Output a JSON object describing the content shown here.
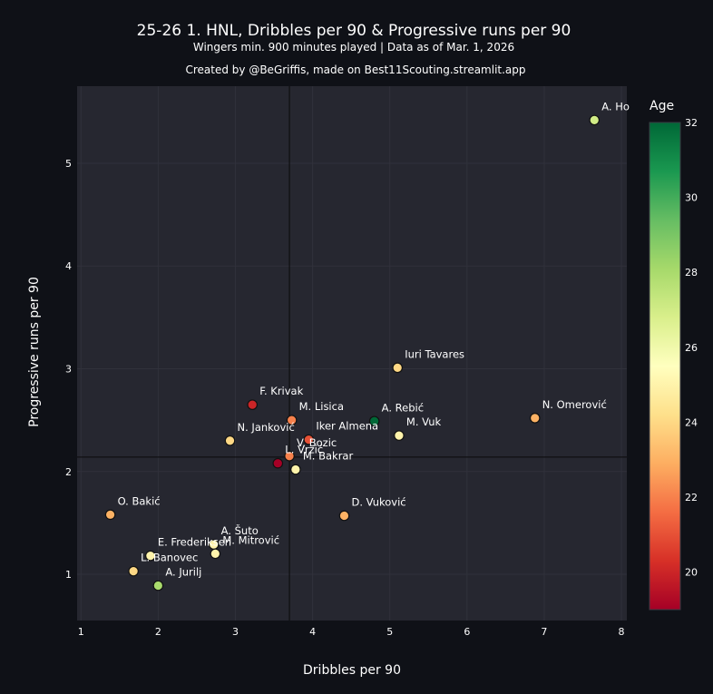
{
  "chart_data": {
    "type": "scatter",
    "title": "25-26 1. HNL, Dribbles per 90 & Progressive runs per 90",
    "subtitle": "Wingers min. 900 minutes played | Data as of Mar. 1, 2026",
    "credit": "Created by @BeGriffis, made on Best11Scouting.streamlit.app",
    "xlabel": "Dribbles per 90",
    "ylabel": "Progressive runs per 90",
    "xlim": [
      0.95,
      8.07
    ],
    "ylim": [
      0.55,
      5.75
    ],
    "xticks": [
      1,
      2,
      3,
      4,
      5,
      6,
      7,
      8
    ],
    "yticks": [
      1,
      2,
      3,
      4,
      5
    ],
    "reference_lines": {
      "x": 3.7,
      "y": 2.14
    },
    "colorbar": {
      "title": "Age",
      "min": 19,
      "max": 32,
      "ticks": [
        20,
        22,
        24,
        26,
        28,
        30,
        32
      ]
    },
    "points": [
      {
        "name": "A. Ho",
        "x": 7.65,
        "y": 5.42,
        "age": 27
      },
      {
        "name": "Iuri Tavares",
        "x": 5.1,
        "y": 3.01,
        "age": 24
      },
      {
        "name": "N. Omerović",
        "x": 6.88,
        "y": 2.52,
        "age": 23
      },
      {
        "name": "A. Rebić",
        "x": 4.8,
        "y": 2.49,
        "age": 32
      },
      {
        "name": "M. Vuk",
        "x": 5.12,
        "y": 2.35,
        "age": 25
      },
      {
        "name": "F. Krivak",
        "x": 3.22,
        "y": 2.65,
        "age": 20
      },
      {
        "name": "M. Lisica",
        "x": 3.73,
        "y": 2.5,
        "age": 22
      },
      {
        "name": "Iker Almena",
        "x": 3.95,
        "y": 2.31,
        "age": 21
      },
      {
        "name": "V. Bozic",
        "x": 3.7,
        "y": 2.15,
        "age": 22
      },
      {
        "name": "N. Janković",
        "x": 2.93,
        "y": 2.3,
        "age": 24
      },
      {
        "name": "L. Vrzić",
        "x": 3.55,
        "y": 2.08,
        "age": 19
      },
      {
        "name": "M. Bakrar",
        "x": 3.78,
        "y": 2.02,
        "age": 25
      },
      {
        "name": "D. Vuković",
        "x": 4.41,
        "y": 1.57,
        "age": 23
      },
      {
        "name": "O. Bakić",
        "x": 1.38,
        "y": 1.58,
        "age": 23
      },
      {
        "name": "A. Šuto",
        "x": 2.72,
        "y": 1.29,
        "age": 25
      },
      {
        "name": "M. Mitrović",
        "x": 2.74,
        "y": 1.2,
        "age": 25
      },
      {
        "name": "E. Frederiksen",
        "x": 1.9,
        "y": 1.18,
        "age": 25
      },
      {
        "name": "L. Banovec",
        "x": 1.68,
        "y": 1.03,
        "age": 24
      },
      {
        "name": "A. Jurilj",
        "x": 2.0,
        "y": 0.89,
        "age": 28
      }
    ]
  }
}
